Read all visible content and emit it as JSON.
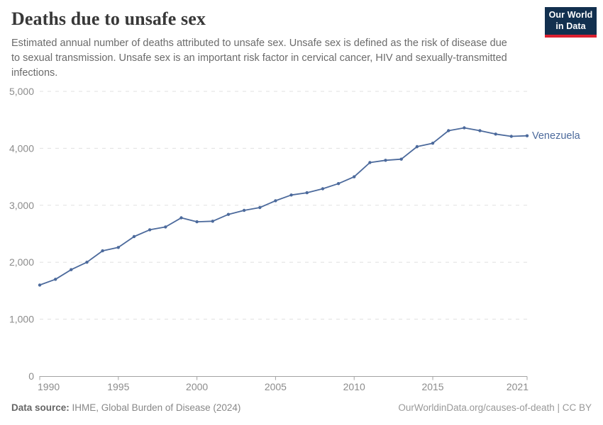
{
  "header": {
    "title": "Deaths due to unsafe sex",
    "subtitle": "Estimated annual number of deaths attributed to unsafe sex. Unsafe sex is defined as the risk of disease due to sexual transmission. Unsafe sex is an important risk factor in cervical cancer, HIV and sexually-transmitted infections.",
    "logo_line1": "Our World",
    "logo_line2": "in Data"
  },
  "chart_data": {
    "type": "line",
    "title": "Deaths due to unsafe sex",
    "xlabel": "",
    "ylabel": "",
    "xlim": [
      1990,
      2021
    ],
    "ylim": [
      0,
      5000
    ],
    "grid": "horizontal-dashed",
    "legend_position": "end-of-line-label",
    "xticks": [
      {
        "value": 1990,
        "label": "1990"
      },
      {
        "value": 1995,
        "label": "1995"
      },
      {
        "value": 2000,
        "label": "2000"
      },
      {
        "value": 2005,
        "label": "2005"
      },
      {
        "value": 2010,
        "label": "2010"
      },
      {
        "value": 2015,
        "label": "2015"
      },
      {
        "value": 2021,
        "label": "2021"
      }
    ],
    "yticks": [
      {
        "value": 0,
        "label": "0"
      },
      {
        "value": 1000,
        "label": "1,000"
      },
      {
        "value": 2000,
        "label": "2,000"
      },
      {
        "value": 3000,
        "label": "3,000"
      },
      {
        "value": 4000,
        "label": "4,000"
      },
      {
        "value": 5000,
        "label": "5,000"
      }
    ],
    "x": [
      1990,
      1991,
      1992,
      1993,
      1994,
      1995,
      1996,
      1997,
      1998,
      1999,
      2000,
      2001,
      2002,
      2003,
      2004,
      2005,
      2006,
      2007,
      2008,
      2009,
      2010,
      2011,
      2012,
      2013,
      2014,
      2015,
      2016,
      2017,
      2018,
      2019,
      2020,
      2021
    ],
    "series": [
      {
        "name": "Venezuela",
        "color": "#4C6A9C",
        "values": [
          1600,
          1700,
          1870,
          2000,
          2200,
          2260,
          2450,
          2570,
          2620,
          2780,
          2710,
          2720,
          2840,
          2910,
          2960,
          3080,
          3180,
          3220,
          3290,
          3380,
          3500,
          3750,
          3790,
          3810,
          4030,
          4090,
          4310,
          4360,
          4310,
          4250,
          4210,
          4220
        ]
      }
    ]
  },
  "footer": {
    "source_label": "Data source:",
    "source_text": "IHME, Global Burden of Disease (2024)",
    "credit": "OurWorldinData.org/causes-of-death | CC BY"
  },
  "colors": {
    "series_line": "#4C6A9C",
    "logo_background": "#12304f",
    "logo_stripe": "#dc2030",
    "grid": "#e0e0e0",
    "axis": "#a3a3a3",
    "tick_text": "#8c8c8c",
    "title_text": "#383838",
    "subtitle_text": "#6b6b6b"
  }
}
